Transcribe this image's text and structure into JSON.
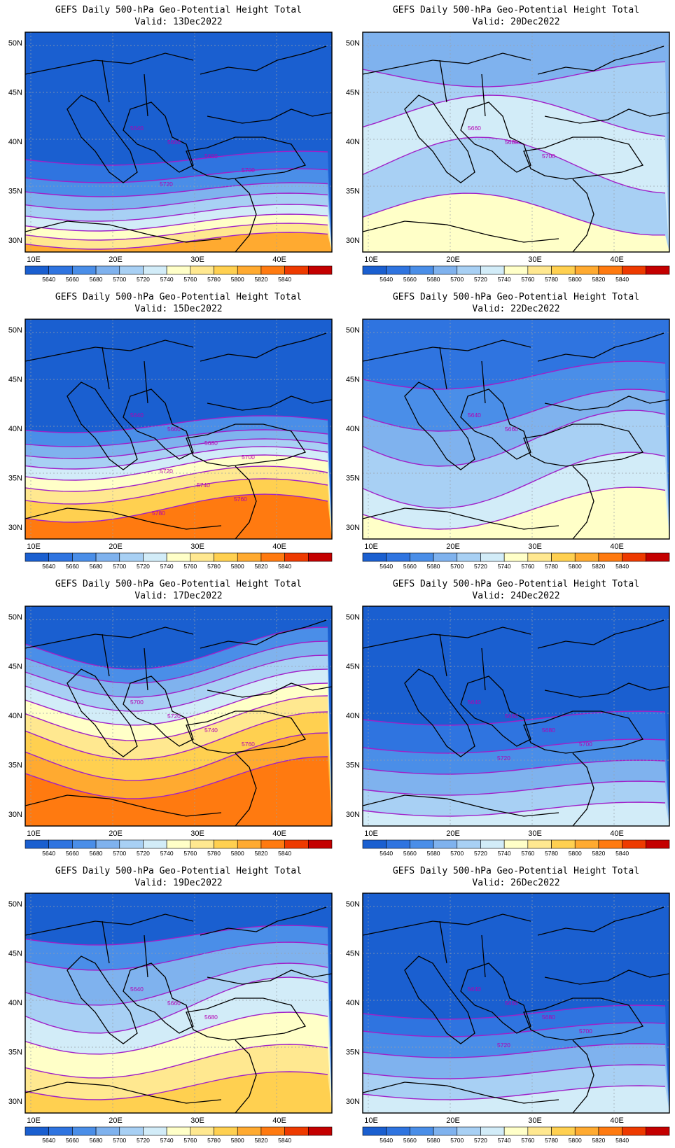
{
  "title_line1": "GEFS Daily 500-hPa Geo-Potential Height Total",
  "lon_ticks": [
    "10E",
    "20E",
    "30E",
    "40E"
  ],
  "lat_ticks": [
    "50N",
    "45N",
    "40N",
    "35N",
    "30N"
  ],
  "colorbar": {
    "labels": [
      "5640",
      "5660",
      "5680",
      "5700",
      "5720",
      "5740",
      "5760",
      "5780",
      "5800",
      "5820",
      "5840"
    ],
    "colors": [
      "#1a5fd0",
      "#2f74e0",
      "#4a8ee8",
      "#7fb2ee",
      "#a8d0f4",
      "#d2ecf8",
      "#ffffc8",
      "#ffe890",
      "#ffd050",
      "#ffaa30",
      "#ff7a10",
      "#ee3a00",
      "#c40000"
    ]
  },
  "panels": [
    {
      "valid": "Valid: 13Dec2022",
      "contour_labels": [
        "5640",
        "5660",
        "5680",
        "5700",
        "5720"
      ]
    },
    {
      "valid": "Valid: 20Dec2022",
      "contour_labels": [
        "5660",
        "5680",
        "5700"
      ]
    },
    {
      "valid": "Valid: 15Dec2022",
      "contour_labels": [
        "5640",
        "5660",
        "5680",
        "5700",
        "5720",
        "5740",
        "5760",
        "5780"
      ]
    },
    {
      "valid": "Valid: 22Dec2022",
      "contour_labels": [
        "5640",
        "5660"
      ]
    },
    {
      "valid": "Valid: 17Dec2022",
      "contour_labels": [
        "5700",
        "5720",
        "5740",
        "5760"
      ]
    },
    {
      "valid": "Valid: 24Dec2022",
      "contour_labels": [
        "5640",
        "5660",
        "5680",
        "5700",
        "5720"
      ]
    },
    {
      "valid": "Valid: 19Dec2022",
      "contour_labels": [
        "5640",
        "5660",
        "5680"
      ]
    },
    {
      "valid": "Valid: 26Dec2022",
      "contour_labels": [
        "5640",
        "5660",
        "5680",
        "5700",
        "5720"
      ]
    }
  ]
}
